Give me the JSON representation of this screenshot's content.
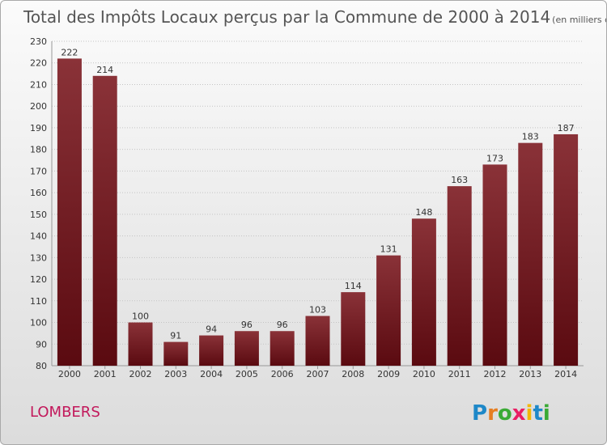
{
  "chart_data": {
    "type": "bar",
    "title": "Total des Impôts Locaux perçus par la Commune de 2000 à 2014",
    "unit_note": "(en milliers d'€)",
    "categories": [
      "2000",
      "2001",
      "2002",
      "2003",
      "2004",
      "2005",
      "2006",
      "2007",
      "2008",
      "2009",
      "2010",
      "2011",
      "2012",
      "2013",
      "2014"
    ],
    "values": [
      222,
      214,
      100,
      91,
      94,
      96,
      96,
      103,
      114,
      131,
      148,
      163,
      173,
      183,
      187
    ],
    "ylim": [
      80,
      230
    ],
    "yticks": [
      80,
      90,
      100,
      110,
      120,
      130,
      140,
      150,
      160,
      170,
      180,
      190,
      200,
      210,
      220,
      230
    ],
    "xlabel": "",
    "ylabel": "",
    "grid": true,
    "bar_color_light": "#8a3238",
    "bar_color_dark": "#5a0a10"
  },
  "commune": "LOMBERS",
  "logo": {
    "letters": [
      "P",
      "r",
      "o",
      "x",
      "i",
      "t",
      "i"
    ],
    "colors": [
      "#1e88c8",
      "#e67e22",
      "#3aaa35",
      "#e91e63",
      "#f2b705",
      "#1e88c8",
      "#3aaa35"
    ]
  }
}
